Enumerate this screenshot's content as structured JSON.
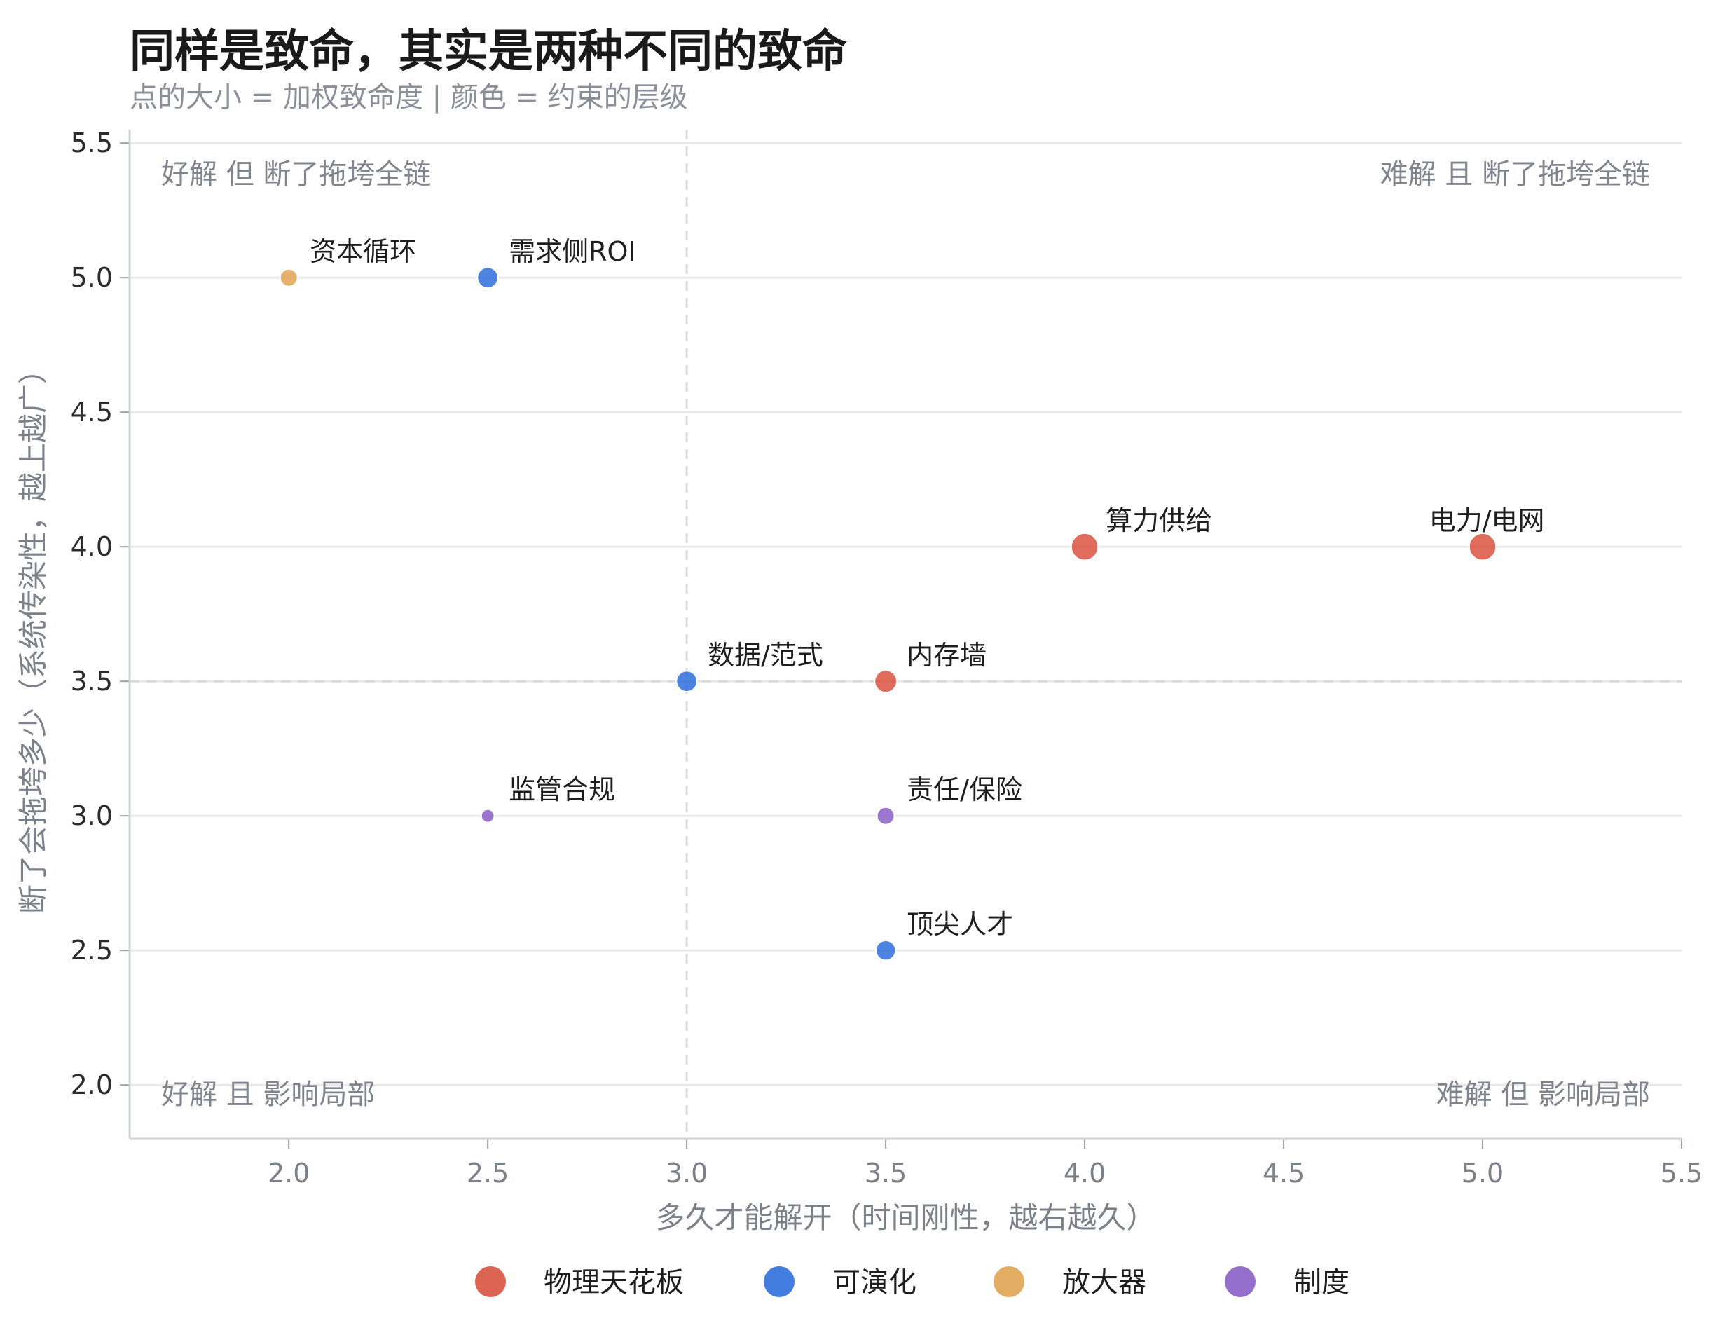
{
  "title": "同样是致命，其实是两种不同的致命",
  "subtitle": "点的大小 = 加权致命度 | 颜色 = 约束的层级",
  "chart_data": {
    "type": "scatter",
    "title": "同样是致命，其实是两种不同的致命",
    "subtitle": "点的大小 = 加权致命度 | 颜色 = 约束的层级",
    "xlabel": "多久才能解开（时间刚性，越右越久）",
    "ylabel": "断了会拖垮多少（系统传染性，越上越广）",
    "xlim": [
      1.6,
      5.5
    ],
    "ylim": [
      1.8,
      5.55
    ],
    "xticks": [
      "2.0",
      "2.5",
      "3.0",
      "3.5",
      "4.0",
      "4.5",
      "5.0",
      "5.5"
    ],
    "yticks": [
      "2.0",
      "2.5",
      "3.0",
      "3.5",
      "4.0",
      "4.5",
      "5.0",
      "5.5"
    ],
    "grid": "horizontal",
    "reference_lines": {
      "x": 3.0,
      "y": 3.5
    },
    "quadrant_labels": {
      "top_left": "好解 但 断了拖垮全链",
      "top_right": "难解 且 断了拖垮全链",
      "bottom_left": "好解 且 影响局部",
      "bottom_right": "难解 但 影响局部"
    },
    "legend_position": "bottom-center",
    "categories": [
      {
        "name": "物理天花板",
        "color": "#d9523f"
      },
      {
        "name": "可演化",
        "color": "#2f6fdc"
      },
      {
        "name": "放大器",
        "color": "#e0a352"
      },
      {
        "name": "制度",
        "color": "#8a5fc7"
      }
    ],
    "points": [
      {
        "label": "资本循环",
        "x": 2.0,
        "y": 5.0,
        "category": 2,
        "size": 2.5
      },
      {
        "label": "需求侧ROI",
        "x": 2.5,
        "y": 5.0,
        "category": 1,
        "size": 3.2
      },
      {
        "label": "算力供给",
        "x": 4.0,
        "y": 4.0,
        "category": 0,
        "size": 4.5
      },
      {
        "label": "电力/电网",
        "x": 5.0,
        "y": 4.0,
        "category": 0,
        "size": 4.5
      },
      {
        "label": "数据/范式",
        "x": 3.0,
        "y": 3.5,
        "category": 1,
        "size": 3.2
      },
      {
        "label": "内存墙",
        "x": 3.5,
        "y": 3.5,
        "category": 0,
        "size": 3.5
      },
      {
        "label": "监管合规",
        "x": 2.5,
        "y": 3.0,
        "category": 3,
        "size": 1.6
      },
      {
        "label": "责任/保险",
        "x": 3.5,
        "y": 3.0,
        "category": 3,
        "size": 2.5
      },
      {
        "label": "顶尖人才",
        "x": 3.5,
        "y": 2.5,
        "category": 1,
        "size": 3.0
      }
    ]
  }
}
